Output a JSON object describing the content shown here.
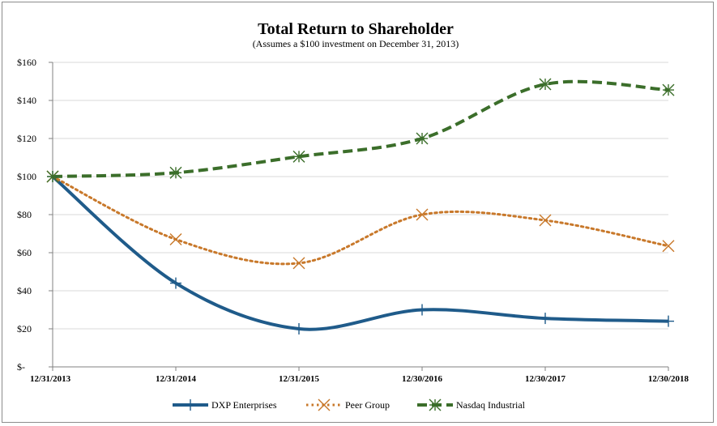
{
  "chart_data": {
    "type": "line",
    "title": "Total Return to Shareholder",
    "subtitle": "(Assumes a $100 investment on December 31, 2013)",
    "categories": [
      "12/31/2013",
      "12/31/2014",
      "12/31/2015",
      "12/30/2016",
      "12/30/2017",
      "12/30/2018"
    ],
    "y_tick_labels": [
      "$-",
      "$20",
      "$40",
      "$60",
      "$80",
      "$100",
      "$120",
      "$140",
      "$160"
    ],
    "ylim": [
      0,
      160
    ],
    "y_step": 20,
    "grid": true,
    "legend_position": "bottom",
    "series": [
      {
        "name": "DXP Enterprises",
        "color": "#1f5b8a",
        "marker": "plus",
        "style": "solid",
        "values": [
          100,
          44,
          20,
          30,
          25.5,
          24
        ]
      },
      {
        "name": "Peer Group",
        "color": "#c8782a",
        "marker": "x",
        "style": "dotted",
        "values": [
          100,
          67,
          54.5,
          80,
          77,
          63.5
        ]
      },
      {
        "name": "Nasdaq Industrial",
        "color": "#3b6e2a",
        "marker": "star",
        "style": "dashed",
        "values": [
          100,
          102,
          110.5,
          120,
          148.5,
          145.5
        ]
      }
    ]
  }
}
